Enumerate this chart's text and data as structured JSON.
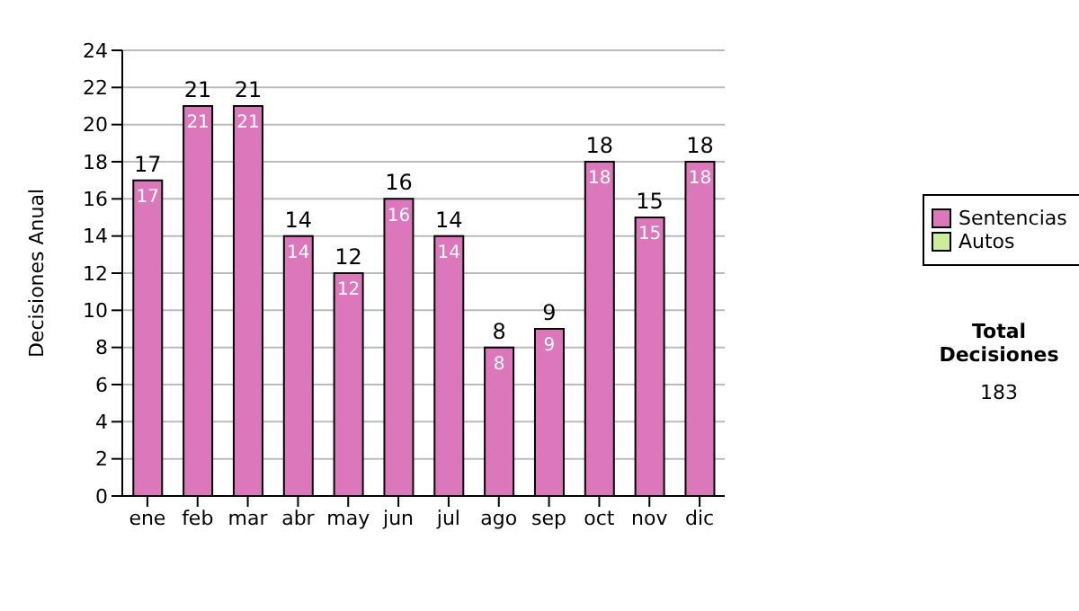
{
  "chart_data": {
    "type": "bar",
    "ylabel": "Decisiones Anual",
    "categories": [
      "ene",
      "feb",
      "mar",
      "abr",
      "may",
      "jun",
      "jul",
      "ago",
      "sep",
      "oct",
      "nov",
      "dic"
    ],
    "series": [
      {
        "name": "Sentencias",
        "color": "#dd77bb",
        "values": [
          17,
          21,
          21,
          14,
          12,
          16,
          14,
          8,
          9,
          18,
          15,
          18
        ],
        "value_labels": [
          "17",
          "21",
          "21",
          "14",
          "12",
          "16",
          "14",
          "8",
          "9",
          "18",
          "15",
          "18"
        ]
      },
      {
        "name": "Autos",
        "color": "#ccee99",
        "values": [
          0,
          0,
          0,
          0,
          0,
          0,
          0,
          0,
          0,
          0,
          0,
          0
        ]
      }
    ],
    "stacked": true,
    "totals": [
      "17",
      "21",
      "21",
      "14",
      "12",
      "16",
      "14",
      "8",
      "9",
      "18",
      "15",
      "18"
    ],
    "ylim": [
      0,
      24
    ],
    "yticks": [
      0,
      2,
      4,
      6,
      8,
      10,
      12,
      14,
      16,
      18,
      20,
      22,
      24
    ],
    "grid": "y",
    "legend": "right",
    "annotations": [
      "Total Decisiones",
      "183"
    ]
  }
}
